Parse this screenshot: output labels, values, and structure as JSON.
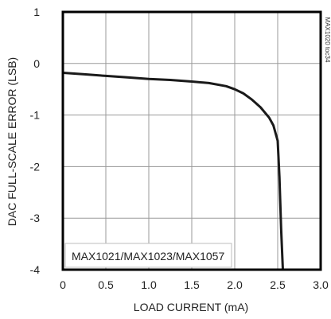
{
  "chart_data": {
    "type": "line",
    "title": "",
    "xlabel": "LOAD CURRENT (mA)",
    "ylabel": "DAC FULL-SCALE ERROR (LSB)",
    "xlim": [
      0,
      3.0
    ],
    "ylim": [
      -4,
      1
    ],
    "x_ticks": [
      0,
      0.5,
      1.0,
      1.5,
      2.0,
      2.5,
      3.0
    ],
    "x_tick_labels": [
      "0",
      "0.5",
      "1.0",
      "1.5",
      "2.0",
      "2.5",
      "3.0"
    ],
    "y_ticks": [
      1,
      0,
      -1,
      -2,
      -3,
      -4
    ],
    "y_tick_labels": [
      "1",
      "0",
      "-1",
      "-2",
      "-3",
      "-4"
    ],
    "grid": true,
    "annotation": "MAX1021/MAX1023/MAX1057",
    "figure_id": "MAX1020 toc34",
    "series": [
      {
        "color": "#1a1a1a",
        "x": [
          0,
          0.25,
          0.5,
          0.75,
          1.0,
          1.25,
          1.5,
          1.7,
          1.9,
          2.0,
          2.1,
          2.2,
          2.3,
          2.4,
          2.45,
          2.5,
          2.52,
          2.54,
          2.56
        ],
        "y": [
          -0.18,
          -0.21,
          -0.24,
          -0.27,
          -0.3,
          -0.32,
          -0.35,
          -0.38,
          -0.44,
          -0.5,
          -0.58,
          -0.7,
          -0.85,
          -1.05,
          -1.2,
          -1.5,
          -2.2,
          -3.2,
          -4.0
        ]
      }
    ]
  }
}
